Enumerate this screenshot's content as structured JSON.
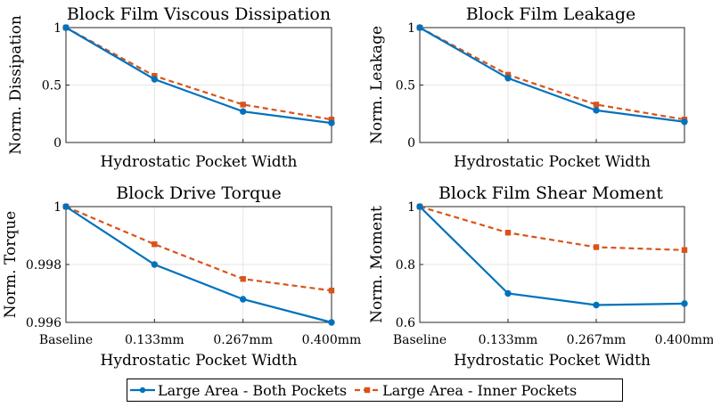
{
  "colors": {
    "blue": "#0072bd",
    "orange": "#d95319",
    "grid": "#e6e6e6",
    "axis": "#262626"
  },
  "legend": [
    {
      "label": "Large Area - Both Pockets",
      "color": "#0072bd",
      "style": "solid-dot"
    },
    {
      "label": "Large Area - Inner Pockets",
      "color": "#d95319",
      "style": "dashed-square"
    }
  ],
  "chart_data": [
    {
      "type": "line",
      "title": "Block Film Viscous Dissipation",
      "xlabel": "Hydrostatic Pocket Width",
      "ylabel": "Norm. Dissipation",
      "categories": [
        "Baseline",
        "0.133mm",
        "0.267mm",
        "0.400mm"
      ],
      "show_xtick_labels": false,
      "ylim": [
        0,
        1
      ],
      "yticks": [
        0,
        0.5,
        1
      ],
      "ytick_labels": [
        "0",
        "0.5",
        "1"
      ],
      "grid": true,
      "series": [
        {
          "name": "Large Area - Both Pockets",
          "values": [
            1.0,
            0.55,
            0.27,
            0.17
          ]
        },
        {
          "name": "Large Area - Inner Pockets",
          "values": [
            1.0,
            0.58,
            0.33,
            0.2
          ]
        }
      ]
    },
    {
      "type": "line",
      "title": "Block Film Leakage",
      "xlabel": "Hydrostatic Pocket Width",
      "ylabel": "Norm. Leakage",
      "categories": [
        "Baseline",
        "0.133mm",
        "0.267mm",
        "0.400mm"
      ],
      "show_xtick_labels": false,
      "ylim": [
        0,
        1
      ],
      "yticks": [
        0,
        0.5,
        1
      ],
      "ytick_labels": [
        "0",
        "0.5",
        "1"
      ],
      "grid": true,
      "series": [
        {
          "name": "Large Area - Both Pockets",
          "values": [
            1.0,
            0.56,
            0.28,
            0.18
          ]
        },
        {
          "name": "Large Area - Inner Pockets",
          "values": [
            1.0,
            0.59,
            0.33,
            0.2
          ]
        }
      ]
    },
    {
      "type": "line",
      "title": "Block Drive Torque",
      "xlabel": "Hydrostatic Pocket Width",
      "ylabel": "Norm. Torque",
      "categories": [
        "Baseline",
        "0.133mm",
        "0.267mm",
        "0.400mm"
      ],
      "show_xtick_labels": true,
      "ylim": [
        0.996,
        1
      ],
      "yticks": [
        0.996,
        0.998,
        1
      ],
      "ytick_labels": [
        "0.996",
        "0.998",
        "1"
      ],
      "grid": true,
      "series": [
        {
          "name": "Large Area - Both Pockets",
          "values": [
            1.0,
            0.998,
            0.9968,
            0.996
          ]
        },
        {
          "name": "Large Area - Inner Pockets",
          "values": [
            1.0,
            0.9987,
            0.9975,
            0.9971
          ]
        }
      ]
    },
    {
      "type": "line",
      "title": "Block Film Shear Moment",
      "xlabel": "Hydrostatic Pocket Width",
      "ylabel": "Norm. Moment",
      "categories": [
        "Baseline",
        "0.133mm",
        "0.267mm",
        "0.400mm"
      ],
      "show_xtick_labels": true,
      "ylim": [
        0.6,
        1
      ],
      "yticks": [
        0.6,
        0.8,
        1
      ],
      "ytick_labels": [
        "0.6",
        "0.8",
        "1"
      ],
      "grid": true,
      "series": [
        {
          "name": "Large Area - Both Pockets",
          "values": [
            1.0,
            0.7,
            0.66,
            0.665
          ]
        },
        {
          "name": "Large Area - Inner Pockets",
          "values": [
            1.0,
            0.91,
            0.86,
            0.85
          ]
        }
      ]
    }
  ]
}
